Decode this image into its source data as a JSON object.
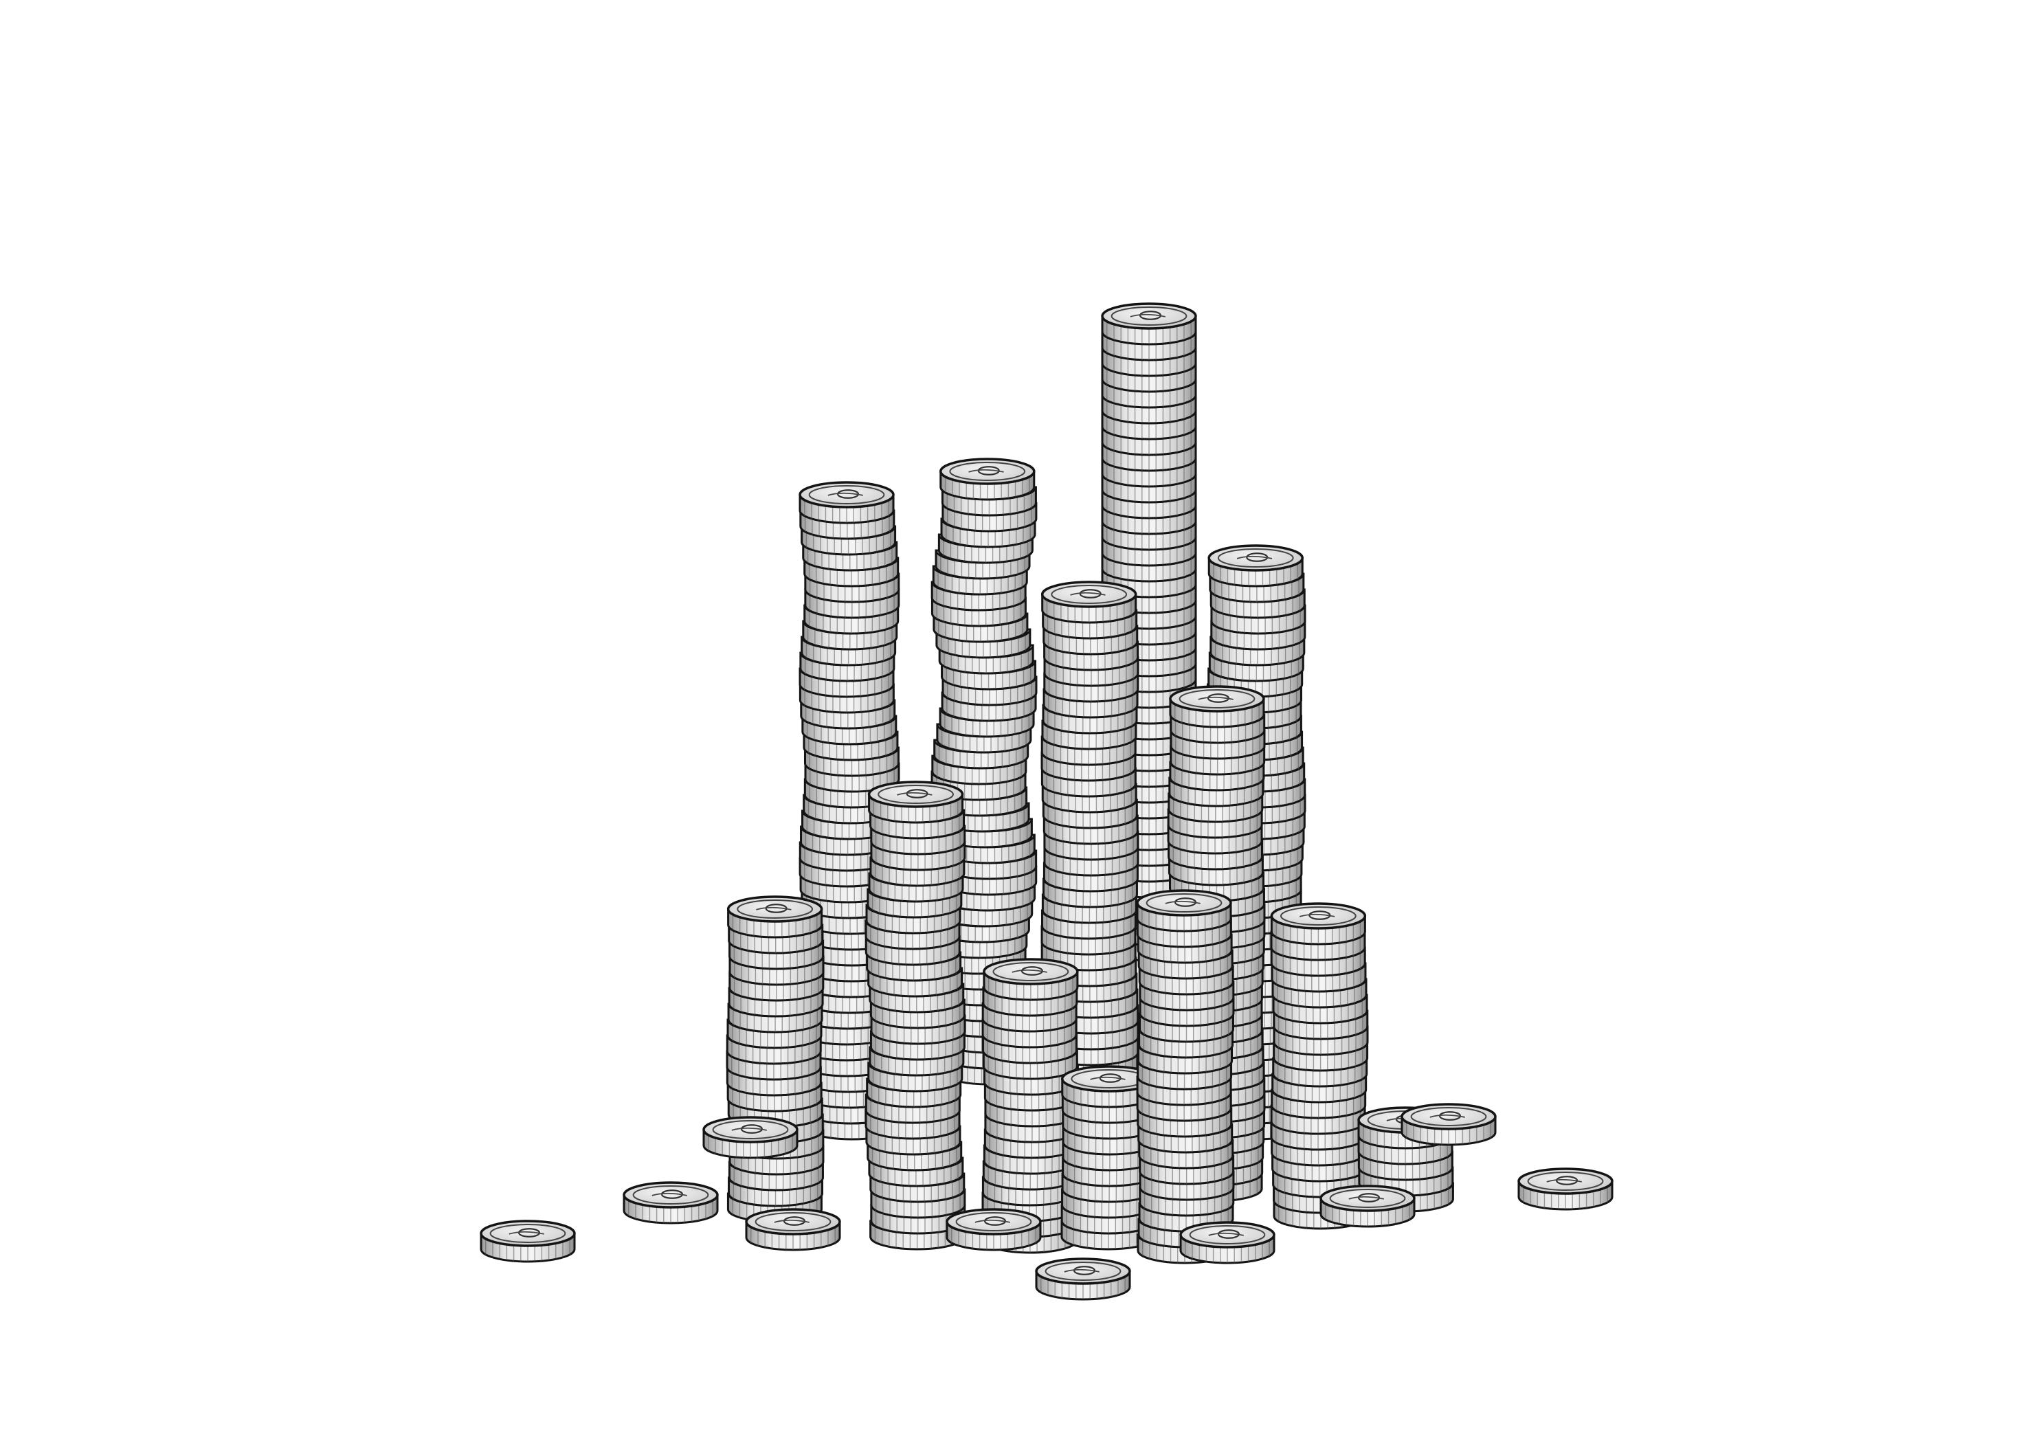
{
  "scene": {
    "subject": "coin-stacks",
    "palette": {
      "background": "#ffffff",
      "outline": "#141414",
      "coin_light": "#e6e6e6",
      "coin_mid": "#c9c9c9",
      "coin_dark": "#9a9a9a",
      "coin_top": "#d8d8d8",
      "coin_face": "#f2f2f2"
    },
    "stacks_count": 14,
    "loose_coins_count": 10
  }
}
